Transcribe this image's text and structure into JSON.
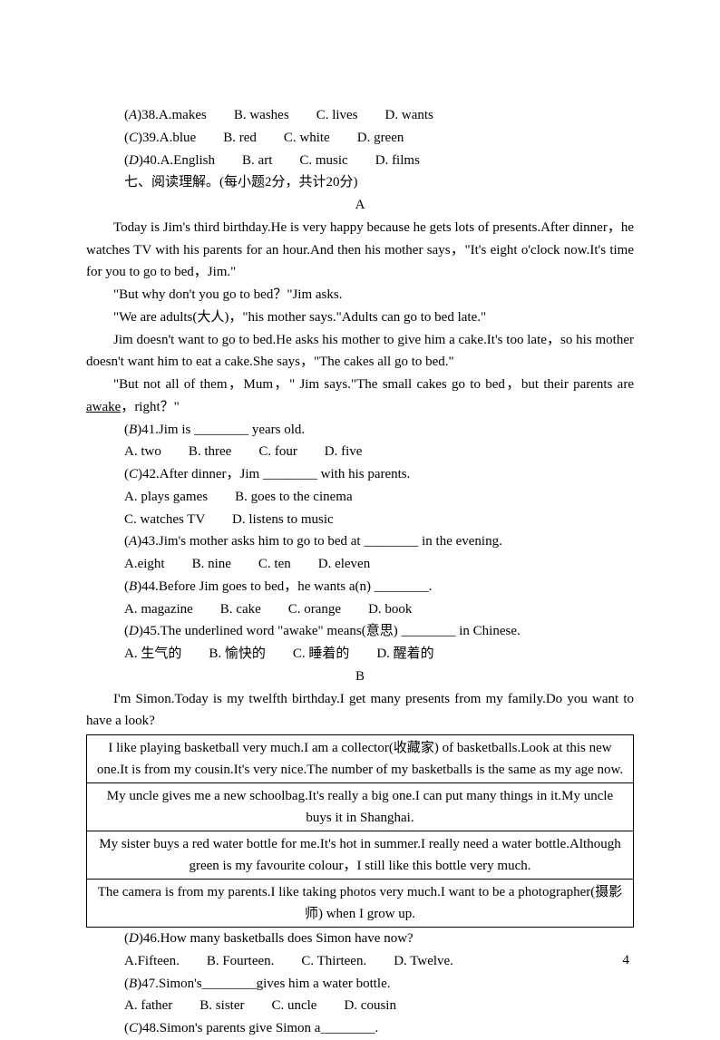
{
  "q38": {
    "prefix": "(",
    "ans": "A",
    "suffix": ")38.A.makes",
    "b": "B. washes",
    "c": "C. lives",
    "d": "D. wants"
  },
  "q39": {
    "prefix": "(",
    "ans": "C",
    "suffix": ")39.A.blue",
    "b": "B. red",
    "c": "C. white",
    "d": "D. green"
  },
  "q40": {
    "prefix": "(",
    "ans": "D",
    "suffix": ")40.A.English",
    "b": "B. art",
    "c": "C. music",
    "d": "D. films"
  },
  "section7": "七、阅读理解。(每小题2分，共计20分)",
  "labelA": "A",
  "passA_p1": "Today is Jim's third birthday.He is very happy because he gets lots of presents.After dinner，he watches TV with his parents for an hour.And then his mother says，\"It's eight o'clock now.It's time for you to go to bed，Jim.\"",
  "passA_p2": "\"But why don't you go to bed？\"Jim asks.",
  "passA_p3": "\"We are adults(大人)，\"his mother says.\"Adults can go to bed late.\"",
  "passA_p4": "Jim doesn't want to go to bed.He asks his mother to give him a cake.It's too late，so his mother doesn't want him to eat a cake.She says，\"The cakes all go to bed.\"",
  "passA_p5a": "\"But not all of them，Mum，\" Jim says.\"The small cakes go to bed，but their parents are ",
  "passA_awake": "awake",
  "passA_p5b": "，right？\"",
  "q41": {
    "prefix": "(",
    "ans": "B",
    "stem1": ")41.Jim is ________ years old.",
    "opts": "A. two　　B. three　　C. four　　D. five"
  },
  "q42": {
    "prefix": "(",
    "ans": "C",
    "stem1": ")42.After dinner，Jim ________ with his parents.",
    "opts1": "A. plays games　　B. goes to the cinema",
    "opts2": "C. watches TV　　D. listens to music"
  },
  "q43": {
    "prefix": "(",
    "ans": "A",
    "stem1": ")43.Jim's mother asks him to go to bed at ________ in the evening.",
    "opts": "A.eight　　B. nine　　C. ten　　D. eleven"
  },
  "q44": {
    "prefix": "(",
    "ans": "B",
    "stem1": ")44.Before Jim goes to bed，he wants a(n) ________.",
    "opts": "A. magazine　　B. cake　　C. orange　　D. book"
  },
  "q45": {
    "prefix": "(",
    "ans": "D",
    "stem1": ")45.The underlined word \"awake\" means(意思) ________ in Chinese.",
    "opts": "A. 生气的　　B. 愉快的　　C. 睡着的　　D. 醒着的"
  },
  "labelB": "B",
  "passB_intro": "I'm Simon.Today is my twelfth birthday.I get many presents from my family.Do you want to have a look?",
  "tbl": {
    "r1": "I like playing basketball very much.I am a collector(收藏家) of basketballs.Look at this new one.It is from my cousin.It's very nice.The number of my basketballs is the same as my age now.",
    "r2": "My uncle gives me a new schoolbag.It's really a big one.I can put many things in it.My uncle buys it in Shanghai.",
    "r3": "My sister buys a red water bottle for me.It's hot in summer.I really need a water bottle.Although green is my favourite colour，I still like this bottle very much.",
    "r4": "The camera is from my parents.I like taking photos very much.I want to be a photographer(摄影师) when I grow up."
  },
  "q46": {
    "prefix": "(",
    "ans": "D",
    "stem1": ")46.How many basketballs does Simon have now?",
    "opts": "A.Fifteen.　　B. Fourteen.　　C. Thirteen.　　D. Twelve."
  },
  "q47": {
    "prefix": "(",
    "ans": "B",
    "stem1": ")47.Simon's________gives him a water bottle.",
    "opts": "A. father　　B. sister　　C. uncle　　D. cousin"
  },
  "q48": {
    "prefix": "(",
    "ans": "C",
    "stem1": ")48.Simon's parents give Simon a________."
  },
  "pageNumber": "4"
}
